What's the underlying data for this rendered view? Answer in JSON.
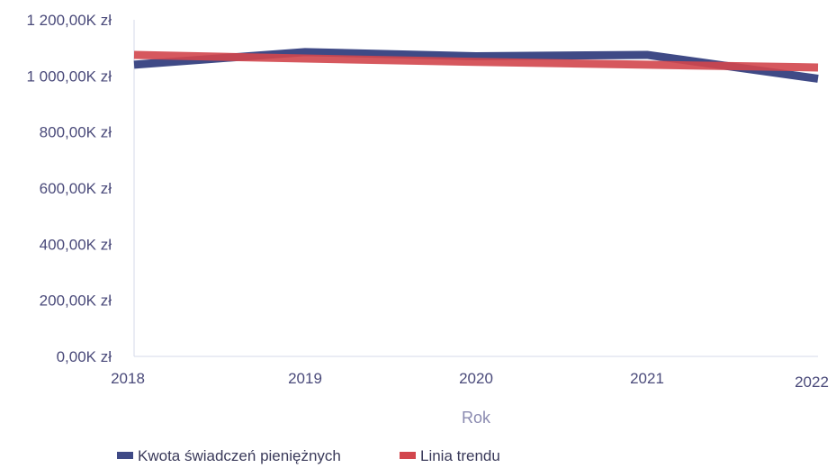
{
  "chart_data": {
    "type": "line",
    "title": "",
    "xlabel": "Rok",
    "ylabel": "",
    "categories": [
      "2018",
      "2019",
      "2020",
      "2021",
      "2022"
    ],
    "ylim": [
      0,
      1200
    ],
    "yticks": [
      0,
      200,
      400,
      600,
      800,
      1000,
      1200
    ],
    "ytick_labels": [
      "0,00K zł",
      "200,00K zł",
      "400,00K zł",
      "600,00K zł",
      "800,00K zł",
      "1 000,00K zł",
      "1 200,00K zł"
    ],
    "grid": false,
    "legend_position": "bottom-left",
    "series": [
      {
        "name": "Kwota świadczeń pieniężnych",
        "values": [
          1040,
          1085,
          1070,
          1075,
          990
        ],
        "color": "#3f4a86"
      },
      {
        "name": "Linia trendu",
        "values": [
          1075,
          1062,
          1050,
          1040,
          1030
        ],
        "color": "#d2464d"
      }
    ]
  }
}
